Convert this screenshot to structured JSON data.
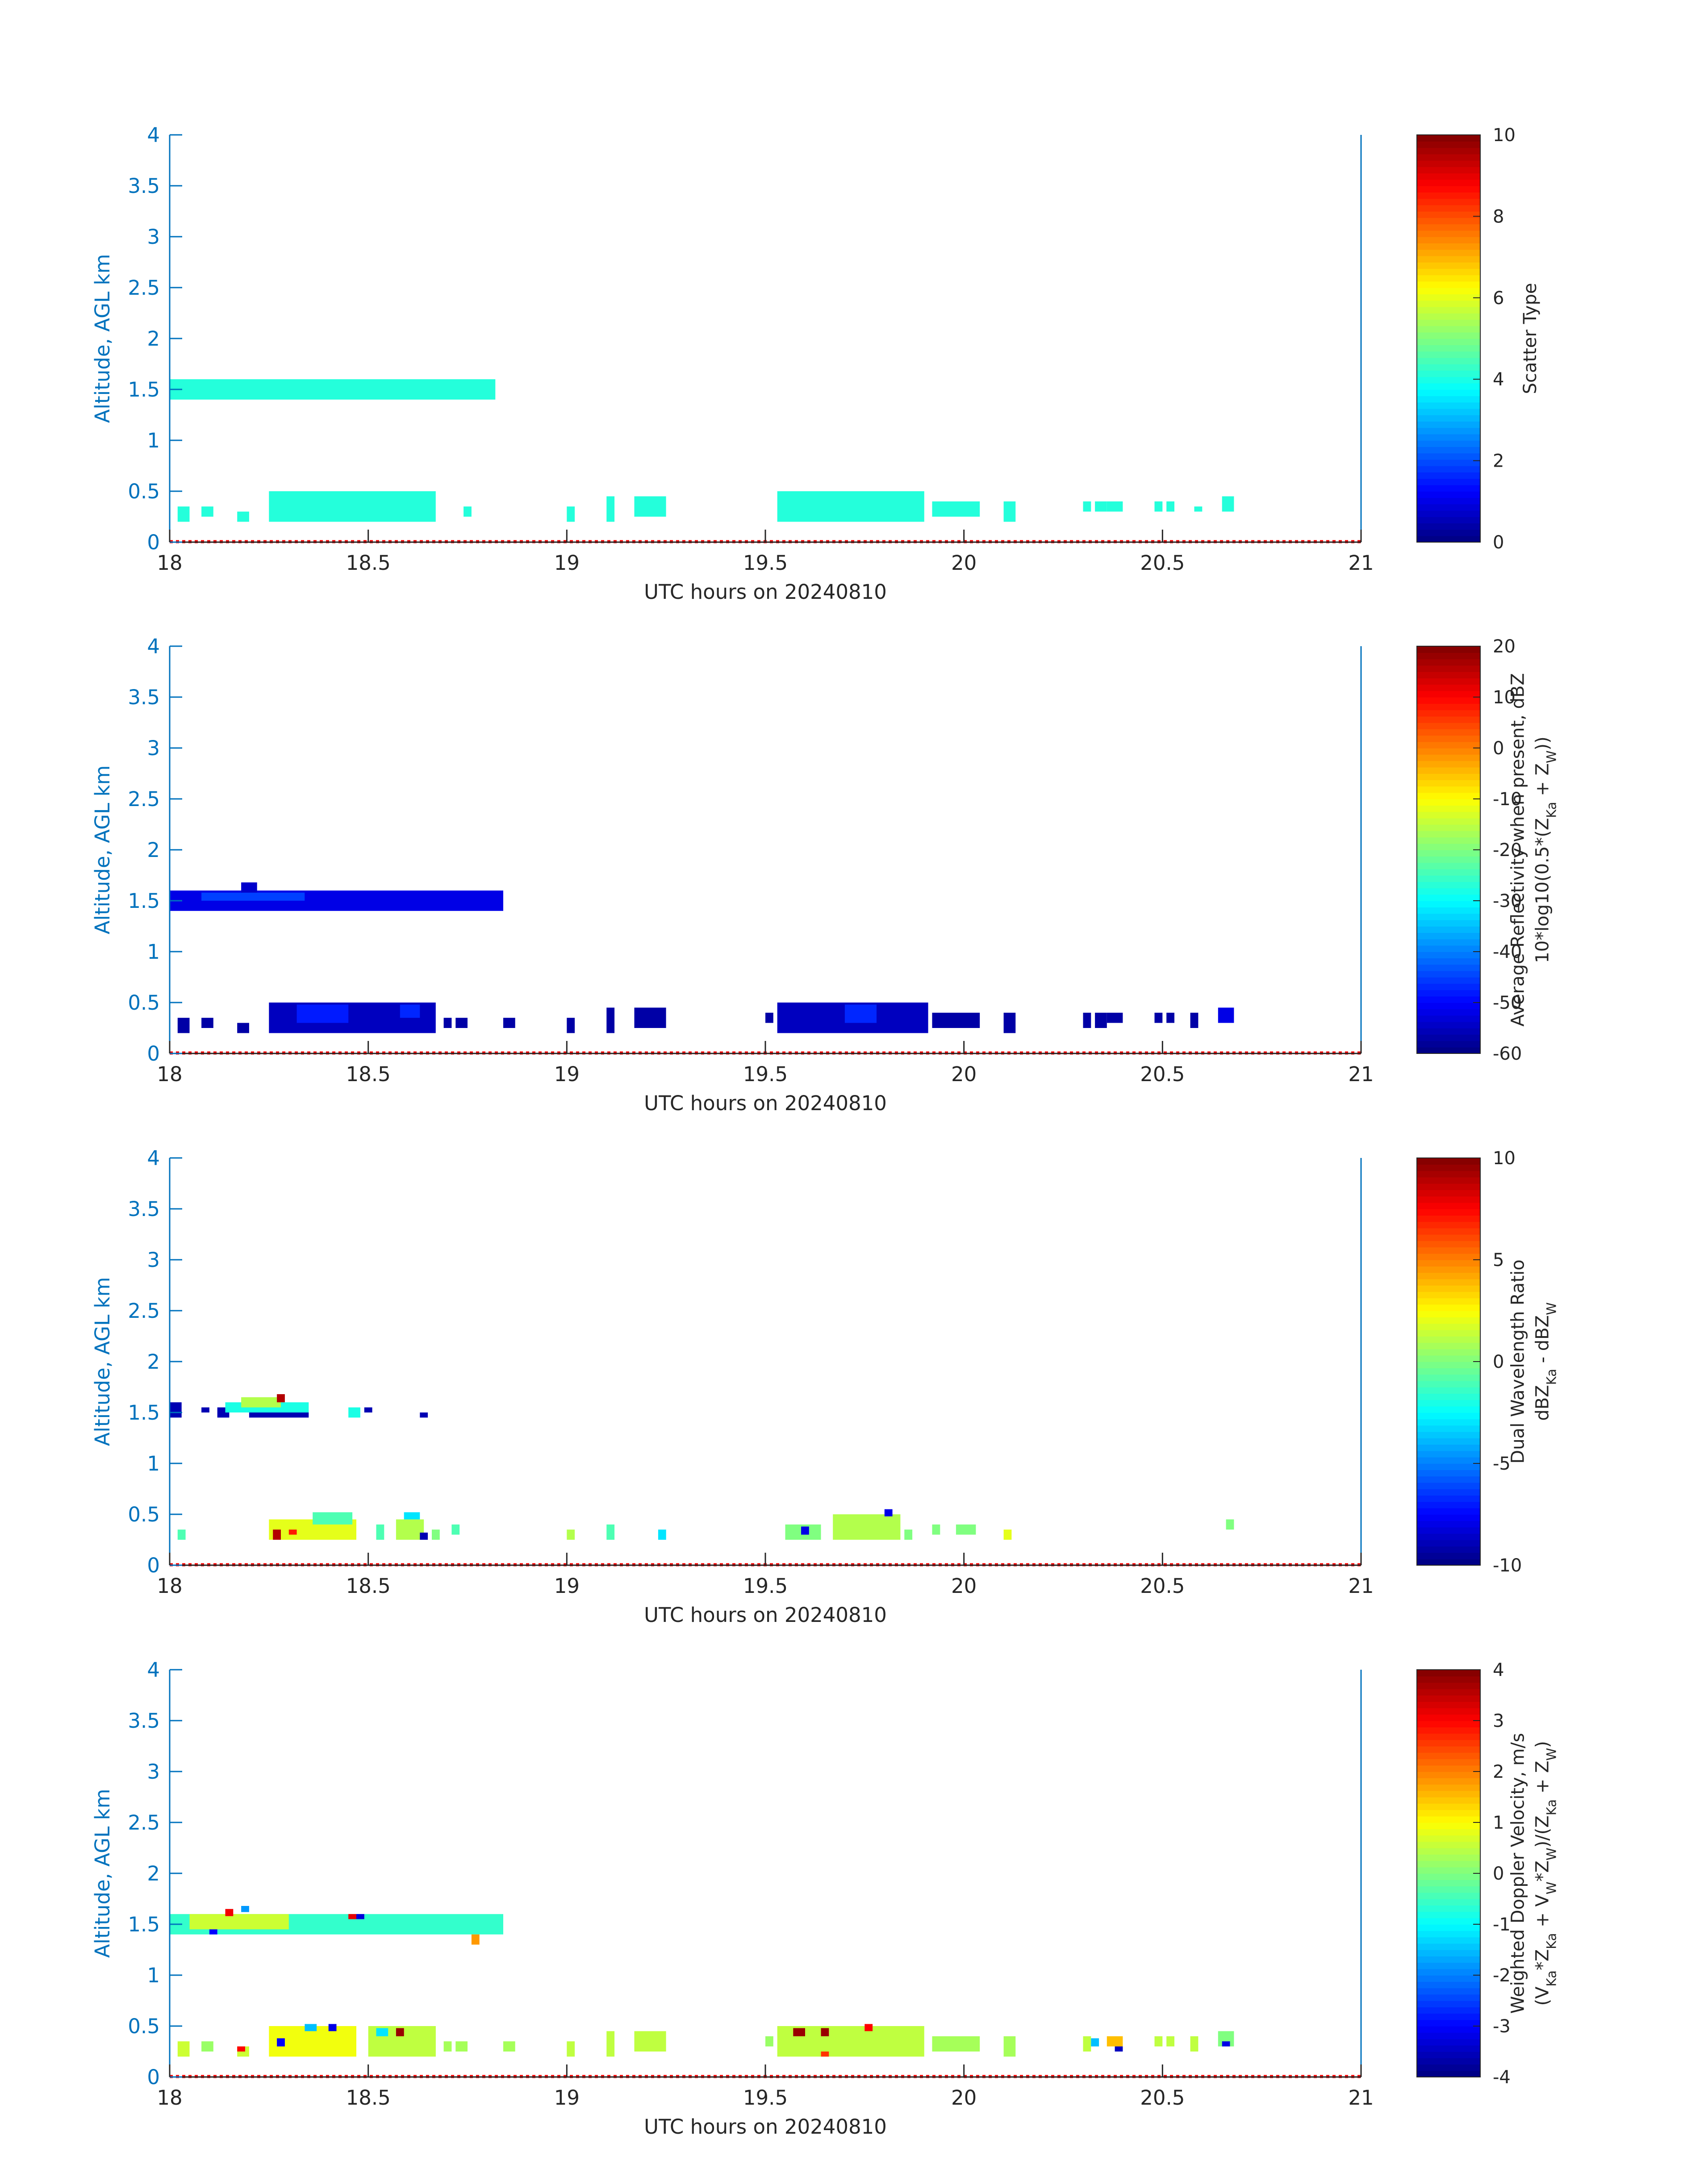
{
  "chart_data": [
    {
      "type": "heatmap",
      "xlabel": "UTC hours on 20240810",
      "ylabel": "Altitude, AGL km",
      "xlim": [
        18,
        21
      ],
      "ylim": [
        0,
        4
      ],
      "xticks": [
        "18",
        "18.5",
        "19",
        "19.5",
        "20",
        "20.5",
        "21"
      ],
      "yticks": [
        "0",
        "0.5",
        "1",
        "1.5",
        "2",
        "2.5",
        "3",
        "3.5",
        "4"
      ],
      "colorbar": {
        "label_lines": [
          "Scatter Type"
        ],
        "min": 0,
        "max": 10,
        "ticks": [
          "0",
          "2",
          "4",
          "6",
          "8",
          "10"
        ]
      },
      "cells": [
        [
          18.0,
          18.82,
          1.4,
          1.6,
          4.1
        ],
        [
          18.02,
          18.05,
          0.2,
          0.35,
          4.1
        ],
        [
          18.08,
          18.11,
          0.25,
          0.35,
          4.1
        ],
        [
          18.17,
          18.2,
          0.2,
          0.3,
          4.1
        ],
        [
          18.25,
          18.67,
          0.2,
          0.5,
          4.1
        ],
        [
          18.74,
          18.76,
          0.25,
          0.35,
          4.1
        ],
        [
          19.0,
          19.02,
          0.2,
          0.35,
          4.1
        ],
        [
          19.1,
          19.12,
          0.2,
          0.45,
          4.1
        ],
        [
          19.17,
          19.25,
          0.25,
          0.45,
          4.1
        ],
        [
          19.53,
          19.9,
          0.2,
          0.5,
          4.1
        ],
        [
          19.92,
          20.04,
          0.25,
          0.4,
          4.1
        ],
        [
          20.1,
          20.13,
          0.2,
          0.4,
          4.1
        ],
        [
          20.3,
          20.32,
          0.3,
          0.4,
          4.1
        ],
        [
          20.33,
          20.36,
          0.3,
          0.4,
          4.1
        ],
        [
          20.36,
          20.4,
          0.3,
          0.4,
          4.1
        ],
        [
          20.48,
          20.5,
          0.3,
          0.4,
          4.1
        ],
        [
          20.51,
          20.53,
          0.3,
          0.4,
          4.1
        ],
        [
          20.58,
          20.6,
          0.3,
          0.35,
          4.1
        ],
        [
          20.65,
          20.68,
          0.3,
          0.45,
          4.1
        ]
      ]
    },
    {
      "type": "heatmap",
      "xlabel": "UTC hours on 20240810",
      "ylabel": "Altitude, AGL km",
      "xlim": [
        18,
        21
      ],
      "ylim": [
        0,
        4
      ],
      "xticks": [
        "18",
        "18.5",
        "19",
        "19.5",
        "20",
        "20.5",
        "21"
      ],
      "yticks": [
        "0",
        "0.5",
        "1",
        "1.5",
        "2",
        "2.5",
        "3",
        "3.5",
        "4"
      ],
      "colorbar": {
        "label_lines": [
          "Average Reflectivity when present, dBZ",
          "10*log10(0.5*(Z_Ka + Z_W))"
        ],
        "min": -60,
        "max": 20,
        "ticks": [
          "-60",
          "-50",
          "-40",
          "-30",
          "-20",
          "-10",
          "0",
          "10",
          "20"
        ]
      },
      "cells": [
        [
          18.0,
          18.84,
          1.4,
          1.6,
          -52
        ],
        [
          18.08,
          18.34,
          1.5,
          1.58,
          -45
        ],
        [
          18.18,
          18.22,
          1.58,
          1.68,
          -54
        ],
        [
          18.02,
          18.05,
          0.2,
          0.35,
          -57
        ],
        [
          18.08,
          18.11,
          0.25,
          0.35,
          -57
        ],
        [
          18.17,
          18.2,
          0.2,
          0.3,
          -57
        ],
        [
          18.25,
          18.67,
          0.2,
          0.5,
          -55
        ],
        [
          18.32,
          18.45,
          0.3,
          0.48,
          -48
        ],
        [
          18.58,
          18.63,
          0.35,
          0.48,
          -47
        ],
        [
          18.69,
          18.71,
          0.25,
          0.35,
          -57
        ],
        [
          18.72,
          18.75,
          0.25,
          0.35,
          -57
        ],
        [
          18.84,
          18.87,
          0.25,
          0.35,
          -57
        ],
        [
          19.0,
          19.02,
          0.2,
          0.35,
          -57
        ],
        [
          19.1,
          19.12,
          0.2,
          0.45,
          -57
        ],
        [
          19.17,
          19.25,
          0.25,
          0.45,
          -57
        ],
        [
          19.5,
          19.52,
          0.3,
          0.4,
          -57
        ],
        [
          19.53,
          19.91,
          0.2,
          0.5,
          -55
        ],
        [
          19.7,
          19.78,
          0.3,
          0.48,
          -47
        ],
        [
          19.92,
          20.04,
          0.25,
          0.4,
          -57
        ],
        [
          20.1,
          20.13,
          0.2,
          0.4,
          -57
        ],
        [
          20.3,
          20.32,
          0.25,
          0.4,
          -57
        ],
        [
          20.33,
          20.36,
          0.25,
          0.4,
          -57
        ],
        [
          20.36,
          20.4,
          0.3,
          0.4,
          -57
        ],
        [
          20.48,
          20.5,
          0.3,
          0.4,
          -57
        ],
        [
          20.51,
          20.53,
          0.3,
          0.4,
          -57
        ],
        [
          20.57,
          20.59,
          0.25,
          0.4,
          -57
        ],
        [
          20.64,
          20.68,
          0.3,
          0.45,
          -52
        ]
      ]
    },
    {
      "type": "heatmap",
      "xlabel": "UTC hours on 20240810",
      "ylabel": "Altitude, AGL km",
      "xlim": [
        18,
        21
      ],
      "ylim": [
        0,
        4
      ],
      "xticks": [
        "18",
        "18.5",
        "19",
        "19.5",
        "20",
        "20.5",
        "21"
      ],
      "yticks": [
        "0",
        "0.5",
        "1",
        "1.5",
        "2",
        "2.5",
        "3",
        "3.5",
        "4"
      ],
      "colorbar": {
        "label_lines": [
          "Dual Wavelength Ratio",
          "dBZ_Ka - dBZ_W"
        ],
        "min": -10,
        "max": 10,
        "ticks": [
          "-10",
          "-5",
          "0",
          "5",
          "10"
        ]
      },
      "cells": [
        [
          18.0,
          18.03,
          1.45,
          1.6,
          -9
        ],
        [
          18.08,
          18.1,
          1.5,
          1.55,
          -9
        ],
        [
          18.12,
          18.15,
          1.45,
          1.55,
          -9
        ],
        [
          18.14,
          18.35,
          1.5,
          1.6,
          -2
        ],
        [
          18.18,
          18.28,
          1.55,
          1.65,
          1
        ],
        [
          18.27,
          18.29,
          1.6,
          1.68,
          9
        ],
        [
          18.2,
          18.35,
          1.45,
          1.5,
          -9
        ],
        [
          18.45,
          18.48,
          1.45,
          1.55,
          -2
        ],
        [
          18.49,
          18.51,
          1.5,
          1.55,
          -9
        ],
        [
          18.63,
          18.65,
          1.45,
          1.5,
          -9
        ],
        [
          18.02,
          18.04,
          0.25,
          0.35,
          -1
        ],
        [
          18.25,
          18.47,
          0.25,
          0.45,
          2
        ],
        [
          18.36,
          18.46,
          0.4,
          0.52,
          -1
        ],
        [
          18.26,
          18.28,
          0.25,
          0.35,
          9
        ],
        [
          18.3,
          18.32,
          0.3,
          0.35,
          7
        ],
        [
          18.52,
          18.54,
          0.25,
          0.4,
          -1
        ],
        [
          18.57,
          18.64,
          0.25,
          0.45,
          1
        ],
        [
          18.59,
          18.63,
          0.45,
          0.52,
          -3
        ],
        [
          18.63,
          18.65,
          0.25,
          0.32,
          -9
        ],
        [
          18.66,
          18.68,
          0.25,
          0.35,
          0
        ],
        [
          18.71,
          18.73,
          0.3,
          0.4,
          -1
        ],
        [
          19.0,
          19.02,
          0.25,
          0.35,
          1
        ],
        [
          19.1,
          19.12,
          0.25,
          0.4,
          -1
        ],
        [
          19.23,
          19.25,
          0.25,
          0.35,
          -3
        ],
        [
          19.55,
          19.64,
          0.25,
          0.4,
          0
        ],
        [
          19.59,
          19.61,
          0.3,
          0.38,
          -8
        ],
        [
          19.67,
          19.84,
          0.25,
          0.5,
          1
        ],
        [
          19.8,
          19.82,
          0.48,
          0.55,
          -8
        ],
        [
          19.85,
          19.87,
          0.25,
          0.35,
          0
        ],
        [
          19.92,
          19.94,
          0.3,
          0.4,
          0
        ],
        [
          19.98,
          20.03,
          0.3,
          0.4,
          0
        ],
        [
          20.1,
          20.12,
          0.25,
          0.35,
          2
        ],
        [
          20.66,
          20.68,
          0.35,
          0.45,
          0
        ]
      ]
    },
    {
      "type": "heatmap",
      "xlabel": "UTC hours on 20240810",
      "ylabel": "Altitude, AGL km",
      "xlim": [
        18,
        21
      ],
      "ylim": [
        0,
        4
      ],
      "xticks": [
        "18",
        "18.5",
        "19",
        "19.5",
        "20",
        "20.5",
        "21"
      ],
      "yticks": [
        "0",
        "0.5",
        "1",
        "1.5",
        "2",
        "2.5",
        "3",
        "3.5",
        "4"
      ],
      "colorbar": {
        "label_lines": [
          "Weighted Doppler Velocity, m/s",
          "(V_Ka*Z_Ka + V_W*Z_W)/(Z_Ka + Z_W)"
        ],
        "min": -4,
        "max": 4,
        "ticks": [
          "-4",
          "-3",
          "-2",
          "-1",
          "0",
          "1",
          "2",
          "3",
          "4"
        ]
      },
      "cells": [
        [
          18.0,
          18.84,
          1.4,
          1.6,
          -0.6
        ],
        [
          18.05,
          18.3,
          1.45,
          1.6,
          0.6
        ],
        [
          18.18,
          18.2,
          1.62,
          1.68,
          -1.8
        ],
        [
          18.14,
          18.16,
          1.58,
          1.65,
          3.1
        ],
        [
          18.1,
          18.12,
          1.4,
          1.45,
          -3.0
        ],
        [
          18.45,
          18.47,
          1.55,
          1.6,
          3.2
        ],
        [
          18.47,
          18.49,
          1.55,
          1.6,
          -3.3
        ],
        [
          18.76,
          18.78,
          1.3,
          1.4,
          1.8
        ],
        [
          18.02,
          18.05,
          0.2,
          0.35,
          0.6
        ],
        [
          18.08,
          18.11,
          0.25,
          0.35,
          0.2
        ],
        [
          18.17,
          18.2,
          0.2,
          0.3,
          0.6
        ],
        [
          18.17,
          18.19,
          0.25,
          0.3,
          3.0
        ],
        [
          18.25,
          18.47,
          0.2,
          0.5,
          0.9
        ],
        [
          18.27,
          18.29,
          0.3,
          0.38,
          -3.0
        ],
        [
          18.34,
          18.37,
          0.45,
          0.52,
          -1.5
        ],
        [
          18.4,
          18.42,
          0.45,
          0.52,
          -3.2
        ],
        [
          18.5,
          18.67,
          0.2,
          0.5,
          0.5
        ],
        [
          18.57,
          18.59,
          0.4,
          0.48,
          3.8
        ],
        [
          18.52,
          18.55,
          0.4,
          0.48,
          -1.2
        ],
        [
          18.69,
          18.71,
          0.25,
          0.35,
          0.3
        ],
        [
          18.72,
          18.75,
          0.25,
          0.35,
          0.3
        ],
        [
          18.84,
          18.87,
          0.25,
          0.35,
          0.3
        ],
        [
          19.0,
          19.02,
          0.2,
          0.35,
          0.5
        ],
        [
          19.1,
          19.12,
          0.2,
          0.45,
          0.5
        ],
        [
          19.17,
          19.25,
          0.25,
          0.45,
          0.5
        ],
        [
          19.5,
          19.52,
          0.3,
          0.4,
          0.2
        ],
        [
          19.53,
          19.9,
          0.2,
          0.5,
          0.5
        ],
        [
          19.57,
          19.6,
          0.4,
          0.48,
          3.8
        ],
        [
          19.64,
          19.66,
          0.4,
          0.48,
          3.8
        ],
        [
          19.75,
          19.77,
          0.45,
          0.52,
          3.0
        ],
        [
          19.64,
          19.66,
          0.2,
          0.25,
          2.6
        ],
        [
          19.92,
          20.04,
          0.25,
          0.4,
          0.3
        ],
        [
          20.1,
          20.13,
          0.2,
          0.4,
          0.3
        ],
        [
          20.3,
          20.32,
          0.25,
          0.4,
          0.5
        ],
        [
          20.32,
          20.34,
          0.3,
          0.38,
          -1.5
        ],
        [
          20.36,
          20.4,
          0.3,
          0.4,
          1.5
        ],
        [
          20.38,
          20.4,
          0.25,
          0.3,
          -3.5
        ],
        [
          20.48,
          20.5,
          0.3,
          0.4,
          0.5
        ],
        [
          20.51,
          20.53,
          0.3,
          0.4,
          0.5
        ],
        [
          20.57,
          20.59,
          0.25,
          0.4,
          0.5
        ],
        [
          20.64,
          20.68,
          0.3,
          0.45,
          0.0
        ],
        [
          20.65,
          20.67,
          0.3,
          0.35,
          -3.2
        ]
      ]
    }
  ]
}
